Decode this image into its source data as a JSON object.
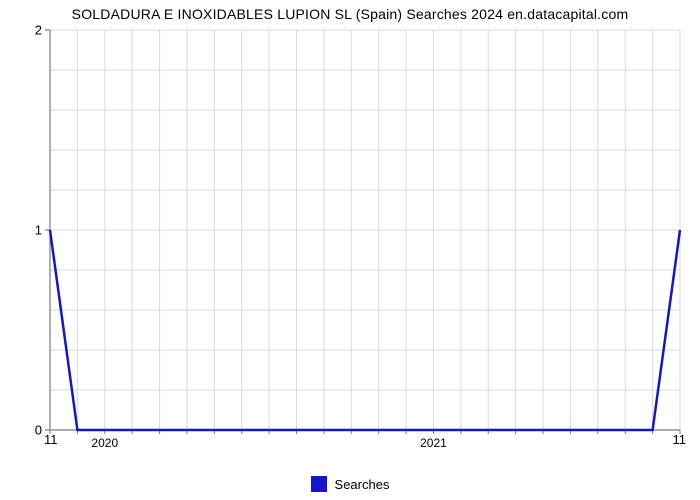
{
  "chart": {
    "type": "line",
    "title": "SOLDADURA E INOXIDABLES LUPION SL (Spain) Searches 2024 en.datacapital.com",
    "title_fontsize": 14,
    "background_color": "#ffffff",
    "grid_color": "#d9d9d9",
    "grid_line_width": 1,
    "axis_color": "#7c7c7c",
    "xlim": [
      0,
      23
    ],
    "ylim": [
      0,
      2
    ],
    "y_ticks": [
      0,
      1,
      2
    ],
    "y_minor_step": 0.2,
    "x_minor_step": 1,
    "x_axis_labels": [
      {
        "pos": 2,
        "label": "2020"
      },
      {
        "pos": 14,
        "label": "2021"
      }
    ],
    "corner_left_label": "11",
    "corner_right_label": "11",
    "series": {
      "name": "Searches",
      "color": "#1515c9",
      "line_width": 2.5,
      "x": [
        0,
        1,
        2,
        3,
        4,
        5,
        6,
        7,
        8,
        9,
        10,
        11,
        12,
        13,
        14,
        15,
        16,
        17,
        18,
        19,
        20,
        21,
        22,
        23
      ],
      "y": [
        1,
        0,
        0,
        0,
        0,
        0,
        0,
        0,
        0,
        0,
        0,
        0,
        0,
        0,
        0,
        0,
        0,
        0,
        0,
        0,
        0,
        0,
        0,
        1
      ]
    },
    "legend": {
      "position": "bottom-center",
      "label": "Searches",
      "swatch_color": "#1515c9"
    }
  }
}
